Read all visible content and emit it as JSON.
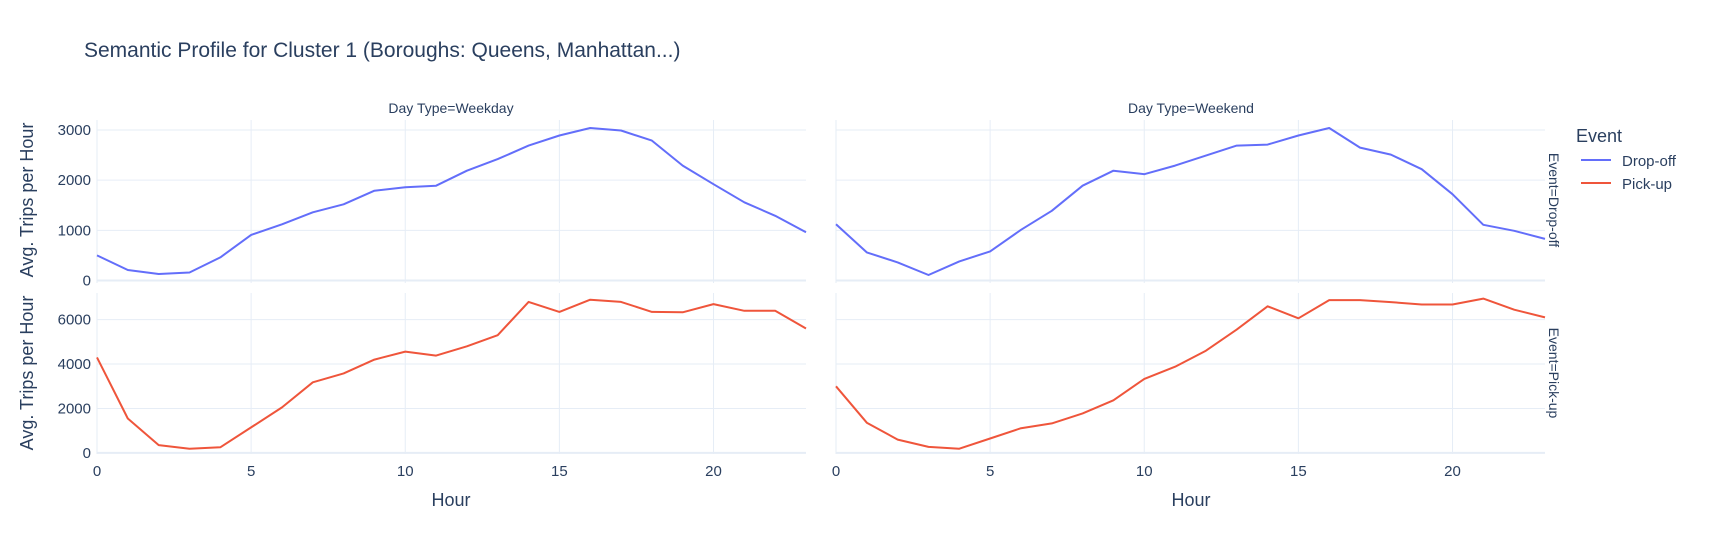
{
  "title": "Semantic Profile for Cluster 1 (Boroughs: Queens, Manhattan...)",
  "legend": {
    "title": "Event",
    "position": "top-right"
  },
  "colors": {
    "Drop-off": "#636efa",
    "Pick-up": "#ef553b",
    "grid": "#e6edf6",
    "text": "#2a3f5f"
  },
  "chart_data": {
    "type": "line",
    "facet_columns": [
      "Day Type=Weekday",
      "Day Type=Weekend"
    ],
    "facet_rows": [
      "Event=Drop-off",
      "Event=Pick-up"
    ],
    "x": [
      0,
      1,
      2,
      3,
      4,
      5,
      6,
      7,
      8,
      9,
      10,
      11,
      12,
      13,
      14,
      15,
      16,
      17,
      18,
      19,
      20,
      21,
      22,
      23
    ],
    "xlabel": "Hour",
    "ylabel": "Avg. Trips per Hour",
    "xlim": [
      0,
      23
    ],
    "xticks": [
      0,
      5,
      10,
      15,
      20
    ],
    "grid": true,
    "panels": [
      {
        "row": 0,
        "col": 0,
        "series": "Drop-off",
        "ylim": [
          -50,
          3200
        ],
        "yticks": [
          0,
          1000,
          2000,
          3000
        ],
        "show_yticks": true,
        "values": [
          500,
          210,
          130,
          160,
          460,
          910,
          1120,
          1360,
          1520,
          1790,
          1860,
          1890,
          2190,
          2420,
          2690,
          2890,
          3040,
          2990,
          2790,
          2290,
          1920,
          1560,
          1290,
          960
        ]
      },
      {
        "row": 0,
        "col": 1,
        "series": "Drop-off",
        "ylim": [
          -50,
          3200
        ],
        "yticks": [
          0,
          1000,
          2000,
          3000
        ],
        "show_yticks": false,
        "values": [
          1120,
          560,
          360,
          110,
          380,
          580,
          1010,
          1390,
          1890,
          2190,
          2120,
          2290,
          2490,
          2690,
          2710,
          2890,
          3040,
          2650,
          2510,
          2220,
          1720,
          1110,
          990,
          830
        ]
      },
      {
        "row": 1,
        "col": 0,
        "series": "Pick-up",
        "ylim": [
          -50,
          7200
        ],
        "yticks": [
          0,
          2000,
          4000,
          6000
        ],
        "show_yticks": true,
        "values": [
          4300,
          1550,
          350,
          190,
          250,
          1150,
          2050,
          3180,
          3580,
          4200,
          4560,
          4380,
          4800,
          5300,
          6800,
          6350,
          6900,
          6800,
          6350,
          6330,
          6700,
          6400,
          6400,
          5600
        ]
      },
      {
        "row": 1,
        "col": 1,
        "series": "Pick-up",
        "ylim": [
          -50,
          7200
        ],
        "yticks": [
          0,
          2000,
          4000,
          6000
        ],
        "show_yticks": false,
        "values": [
          3000,
          1360,
          600,
          270,
          190,
          650,
          1110,
          1330,
          1780,
          2370,
          3330,
          3880,
          4600,
          5550,
          6600,
          6060,
          6880,
          6880,
          6790,
          6680,
          6680,
          6950,
          6450,
          6100
        ]
      }
    ]
  }
}
